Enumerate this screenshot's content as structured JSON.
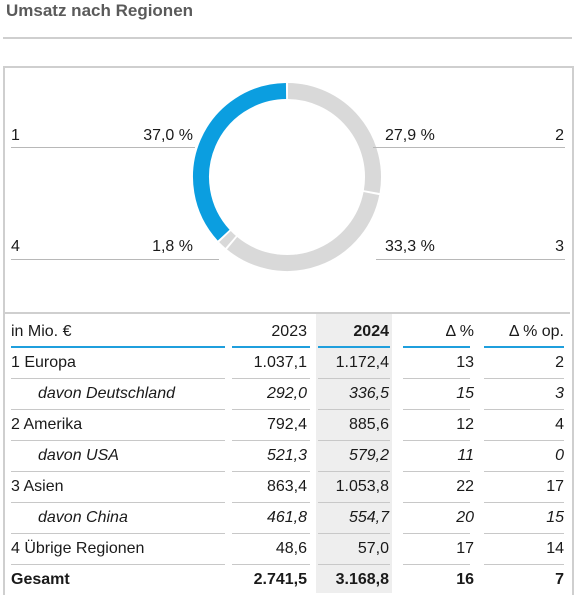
{
  "title": "Umsatz nach Regionen",
  "chart_data": {
    "type": "pie",
    "donut": true,
    "slices": [
      {
        "label": "1",
        "value": 37.0,
        "display": "37,0 %",
        "color": "#0b9ee0"
      },
      {
        "label": "2",
        "value": 27.9,
        "display": "27,9 %",
        "color": "#d9d9d9"
      },
      {
        "label": "3",
        "value": 33.3,
        "display": "33,3 %",
        "color": "#d9d9d9"
      },
      {
        "label": "4",
        "value": 1.8,
        "display": "1,8 %",
        "color": "#d9d9d9"
      }
    ]
  },
  "table": {
    "headers": [
      "in Mio. €",
      "2023",
      "2024",
      "Δ %",
      "Δ % op."
    ],
    "rows": [
      {
        "label": "1 Europa",
        "v2023": "1.037,1",
        "v2024": "1.172,4",
        "d": "13",
        "dop": "2",
        "sub": false
      },
      {
        "label": "davon Deutschland",
        "v2023": "292,0",
        "v2024": "336,5",
        "d": "15",
        "dop": "3",
        "sub": true
      },
      {
        "label": "2 Amerika",
        "v2023": "792,4",
        "v2024": "885,6",
        "d": "12",
        "dop": "4",
        "sub": false
      },
      {
        "label": "davon USA",
        "v2023": "521,3",
        "v2024": "579,2",
        "d": "11",
        "dop": "0",
        "sub": true
      },
      {
        "label": "3 Asien",
        "v2023": "863,4",
        "v2024": "1.053,8",
        "d": "22",
        "dop": "17",
        "sub": false
      },
      {
        "label": "davon China",
        "v2023": "461,8",
        "v2024": "554,7",
        "d": "20",
        "dop": "15",
        "sub": true
      },
      {
        "label": "4 Übrige Regionen",
        "v2023": "48,6",
        "v2024": "57,0",
        "d": "17",
        "dop": "14",
        "sub": false
      }
    ],
    "total": {
      "label": "Gesamt",
      "v2023": "2.741,5",
      "v2024": "3.168,8",
      "d": "16",
      "dop": "7"
    }
  }
}
